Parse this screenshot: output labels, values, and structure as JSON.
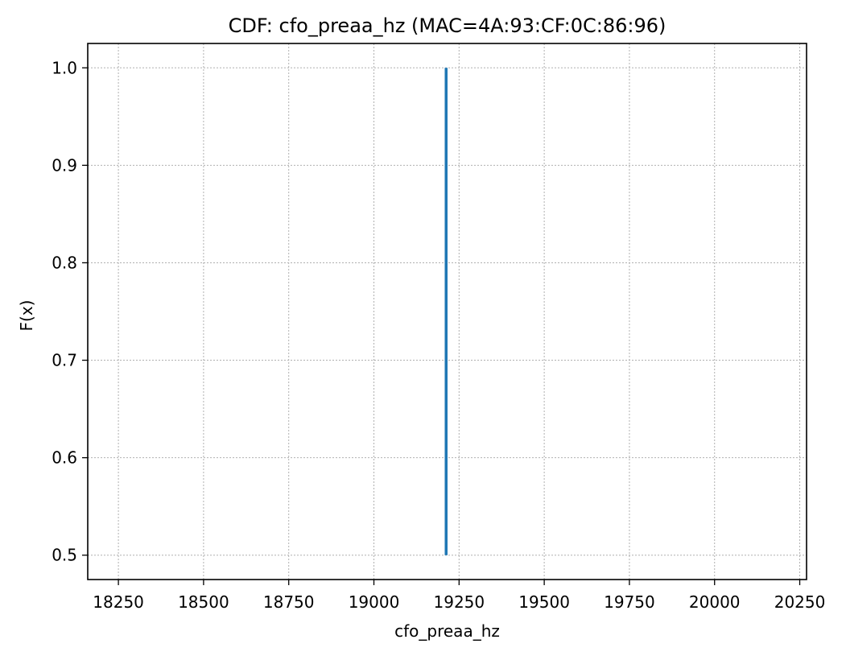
{
  "chart_data": {
    "type": "line",
    "title": "CDF: cfo_preaa_hz (MAC=4A:93:CF:0C:86:96)",
    "xlabel": "cfo_preaa_hz",
    "ylabel": "F(x)",
    "xlim": [
      18160,
      20270
    ],
    "ylim": [
      0.475,
      1.025
    ],
    "xticks": [
      18250,
      18500,
      18750,
      19000,
      19250,
      19500,
      19750,
      20000,
      20250
    ],
    "yticks": [
      0.5,
      0.6,
      0.7,
      0.8,
      0.9,
      1.0
    ],
    "ytick_labels": [
      "0.5",
      "0.6",
      "0.7",
      "0.8",
      "0.9",
      "1.0"
    ],
    "grid": true,
    "series": [
      {
        "color": "#1f77b4",
        "x": [
          19212,
          19212
        ],
        "y": [
          0.5,
          1.0
        ]
      }
    ]
  }
}
